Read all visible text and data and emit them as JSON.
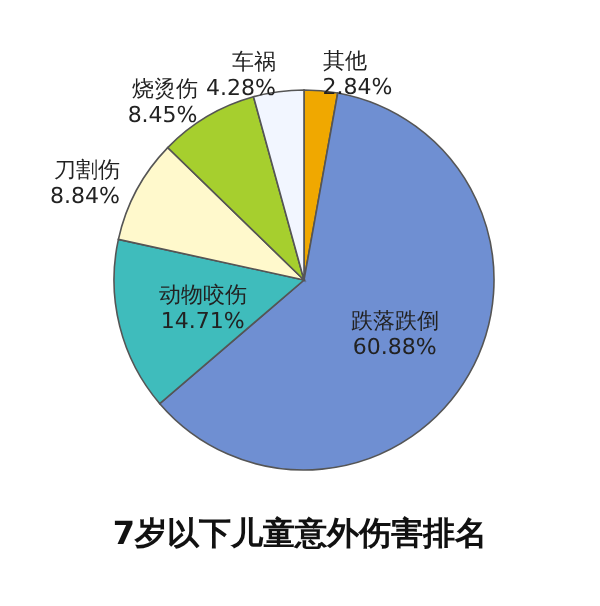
{
  "chart_data": {
    "type": "pie",
    "title": "7岁以下儿童意外伤害排名",
    "categories": [
      "其他",
      "跌落跌倒",
      "动物咬伤",
      "刀割伤",
      "烧烫伤",
      "车祸"
    ],
    "values": [
      2.84,
      60.88,
      14.71,
      8.84,
      8.45,
      4.28
    ],
    "colors": [
      "#f0a800",
      "#6f8fd2",
      "#3fbcbc",
      "#fff9cc",
      "#a6cf2e",
      "#f2f6ff"
    ],
    "value_labels": [
      "2.84%",
      "60.88%",
      "14.71%",
      "8.84%",
      "8.45%",
      "4.28%"
    ]
  }
}
